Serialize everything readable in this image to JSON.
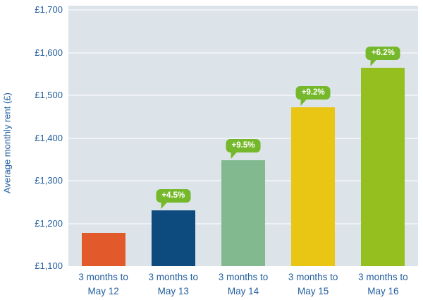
{
  "colors": {
    "background": "#ffffff",
    "plot_bg": "#dce4ea",
    "gridline": "#eef2f6",
    "axis_text": "#235e9e",
    "bubble": "#76b82b",
    "bubble_text": "#ffffff"
  },
  "chart_data": {
    "type": "bar",
    "title": "",
    "xlabel": "",
    "ylabel": "Average monthly rent (£)",
    "ylim": [
      1100,
      1700
    ],
    "ytick_step": 100,
    "grid": true,
    "legend": false,
    "ytick_values": [
      1100,
      1200,
      1300,
      1400,
      1500,
      1600,
      1700
    ],
    "ytick_labels": [
      "£1,100",
      "£1,200",
      "£1,300",
      "£1,400",
      "£1,500",
      "£1,600",
      "£1,700"
    ],
    "categories": [
      "3 months to May 12",
      "3 months to May 13",
      "3 months to May 14",
      "3 months to May 15",
      "3 months to May 16"
    ],
    "bars": [
      {
        "label_line1": "3 months to",
        "label_line2": "May 12",
        "value": 1178,
        "color": "#e2592c",
        "annotation": null
      },
      {
        "label_line1": "3 months to",
        "label_line2": "May 13",
        "value": 1231,
        "color": "#0d4a7d",
        "annotation": "+4.5%"
      },
      {
        "label_line1": "3 months to",
        "label_line2": "May 14",
        "value": 1348,
        "color": "#82b98e",
        "annotation": "+9.5%"
      },
      {
        "label_line1": "3 months to",
        "label_line2": "May 15",
        "value": 1472,
        "color": "#e9c514",
        "annotation": "+9.2%"
      },
      {
        "label_line1": "3 months to",
        "label_line2": "May 16",
        "value": 1565,
        "color": "#95bf1e",
        "annotation": "+6.2%"
      }
    ]
  }
}
